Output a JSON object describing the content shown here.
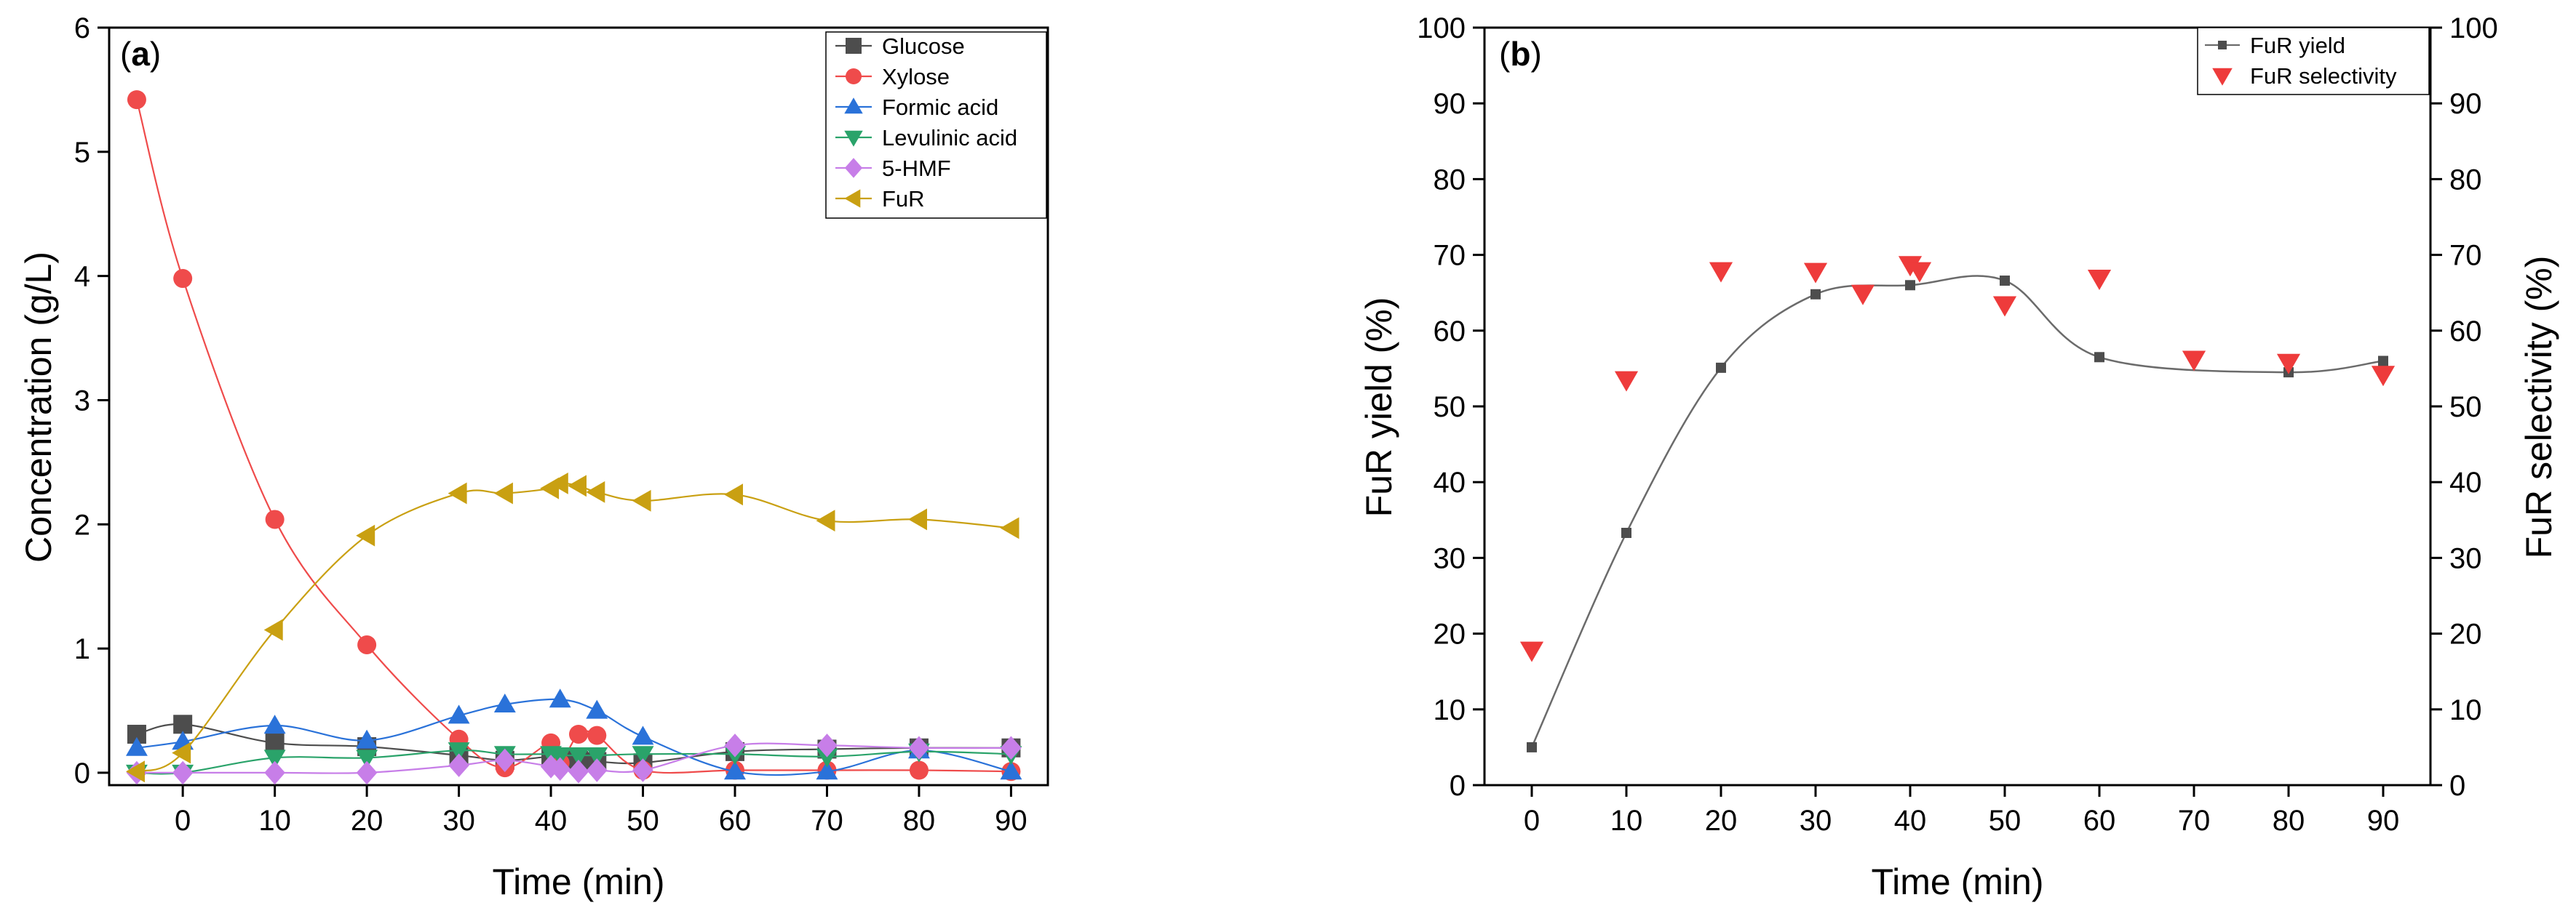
{
  "chart_data": [
    {
      "id": "a",
      "type": "line",
      "panel_label_prefix": "(",
      "panel_label_letter": "a",
      "panel_label_suffix": ")",
      "xlabel": "Time (min)",
      "ylabel": "Concentration (g/L)",
      "xlim": [
        -8,
        94
      ],
      "ylim": [
        -0.1,
        6
      ],
      "xticks": [
        0,
        10,
        20,
        30,
        40,
        50,
        60,
        70,
        80,
        90
      ],
      "yticks": [
        0,
        1,
        2,
        3,
        4,
        5,
        6
      ],
      "legend_position": "top-right",
      "series": [
        {
          "name": "Glucose",
          "color": "#4d4d4d",
          "marker": "square",
          "x": [
            -5,
            0,
            10,
            20,
            30,
            35,
            40,
            41,
            43,
            45,
            50,
            60,
            70,
            80,
            90
          ],
          "y": [
            0.31,
            0.39,
            0.24,
            0.21,
            0.14,
            0.1,
            0.13,
            0.11,
            0.1,
            0.09,
            0.08,
            0.17,
            0.19,
            0.2,
            0.2
          ]
        },
        {
          "name": "Xylose",
          "color": "#ef4b4b",
          "marker": "circle",
          "x": [
            -5,
            0,
            10,
            20,
            30,
            35,
            40,
            41,
            43,
            45,
            50,
            60,
            70,
            80,
            90
          ],
          "y": [
            5.42,
            3.98,
            2.04,
            1.03,
            0.27,
            0.04,
            0.24,
            0.08,
            0.31,
            0.3,
            0.02,
            0.02,
            0.02,
            0.02,
            0.01
          ]
        },
        {
          "name": "Formic acid",
          "color": "#2a72d9",
          "marker": "triangle-up",
          "x": [
            -5,
            0,
            10,
            20,
            30,
            35,
            41,
            45,
            50,
            60,
            70,
            80,
            90
          ],
          "y": [
            0.2,
            0.25,
            0.38,
            0.26,
            0.46,
            0.55,
            0.59,
            0.5,
            0.29,
            0.01,
            0.01,
            0.18,
            0.01
          ]
        },
        {
          "name": "Levulinic acid",
          "color": "#2aa36a",
          "marker": "triangle-down",
          "x": [
            -5,
            0,
            10,
            20,
            30,
            35,
            40,
            41,
            43,
            45,
            50,
            60,
            70,
            80,
            90
          ],
          "y": [
            0.0,
            0.0,
            0.12,
            0.12,
            0.18,
            0.15,
            0.15,
            0.14,
            0.14,
            0.14,
            0.15,
            0.15,
            0.13,
            0.17,
            0.15
          ]
        },
        {
          "name": "5-HMF",
          "color": "#c77ee8",
          "marker": "diamond",
          "x": [
            -5,
            0,
            10,
            20,
            30,
            35,
            40,
            41,
            43,
            45,
            50,
            60,
            70,
            80,
            90
          ],
          "y": [
            0.0,
            0.0,
            0.0,
            0.0,
            0.06,
            0.1,
            0.05,
            0.03,
            0.01,
            0.02,
            0.02,
            0.22,
            0.22,
            0.2,
            0.2
          ]
        },
        {
          "name": "FuR",
          "color": "#c9a012",
          "marker": "triangle-left",
          "x": [
            -5,
            0,
            10,
            20,
            30,
            35,
            40,
            41,
            43,
            45,
            50,
            60,
            70,
            80,
            90
          ],
          "y": [
            0.01,
            0.16,
            1.15,
            1.91,
            2.25,
            2.25,
            2.29,
            2.33,
            2.31,
            2.26,
            2.19,
            2.24,
            2.03,
            2.04,
            1.97
          ]
        }
      ]
    },
    {
      "id": "b",
      "type": "line+scatter",
      "panel_label_prefix": "(",
      "panel_label_letter": "b",
      "panel_label_suffix": ")",
      "xlabel": "Time (min)",
      "ylabel": "FuR yield (%)",
      "y2label": "FuR selectivity (%)",
      "xlim": [
        -5,
        95
      ],
      "ylim": [
        0,
        100
      ],
      "y2lim": [
        0,
        100
      ],
      "xticks": [
        0,
        10,
        20,
        30,
        40,
        50,
        60,
        70,
        80,
        90
      ],
      "yticks": [
        0,
        10,
        20,
        30,
        40,
        50,
        60,
        70,
        80,
        90,
        100
      ],
      "legend_position": "top-right",
      "series": [
        {
          "name": "FuR yield",
          "color": "#4d4d4d",
          "marker": "square",
          "axis": "left",
          "x": [
            0,
            10,
            20,
            30,
            40,
            50,
            60,
            80,
            90
          ],
          "y": [
            5.0,
            33.3,
            55.1,
            64.8,
            66.0,
            66.6,
            56.5,
            54.5,
            56.0
          ]
        },
        {
          "name": "FuR selectivity",
          "color": "#ee3b3b",
          "marker": "triangle-down",
          "axis": "right",
          "x": [
            0,
            10,
            20,
            30,
            35,
            40,
            41,
            50,
            60,
            70,
            80,
            90
          ],
          "y": [
            17.8,
            53.5,
            67.9,
            67.8,
            64.9,
            68.7,
            67.9,
            63.4,
            66.9,
            56.2,
            55.8,
            54.2
          ]
        }
      ]
    }
  ]
}
